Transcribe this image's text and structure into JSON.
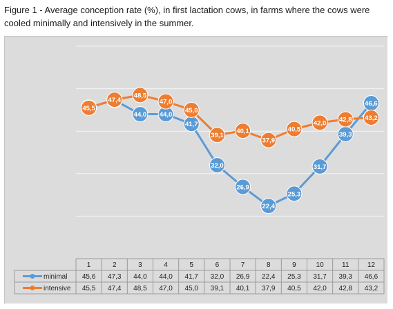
{
  "figure": {
    "caption_line1": "Figure 1 - Average conception rate (%), in first lactation cows, in farms where the cows were",
    "caption_line2": "cooled minimally and intensively in the summer."
  },
  "chart_data": {
    "type": "line",
    "title": "Figure 1 - Average conception rate (%), in first lactation cows, in farms where the cows were cooled minimally and intensively in the summer.",
    "xlabel": "",
    "ylabel": "",
    "categories": [
      "1",
      "2",
      "3",
      "4",
      "5",
      "6",
      "7",
      "8",
      "9",
      "10",
      "11",
      "12"
    ],
    "series": [
      {
        "name": "minimal",
        "color": "#5b9bd5",
        "values": [
          45.6,
          47.3,
          44.0,
          44.0,
          41.7,
          32.0,
          26.9,
          22.4,
          25.3,
          31.7,
          39.3,
          46.6
        ],
        "labels": [
          "45,6",
          "47,3",
          "44,0",
          "44,0",
          "41,7",
          "32,0",
          "26,9",
          "22,4",
          "25,3",
          "31,7",
          "39,3",
          "46,6"
        ]
      },
      {
        "name": "intensive",
        "color": "#ed7d31",
        "values": [
          45.5,
          47.4,
          48.5,
          47.0,
          45.0,
          39.1,
          40.1,
          37.9,
          40.5,
          42.0,
          42.8,
          43.2
        ],
        "labels": [
          "45,5",
          "47,4",
          "48,5",
          "47,0",
          "45,0",
          "39,1",
          "40,1",
          "37,9",
          "40,5",
          "42,0",
          "42,8",
          "43,2"
        ]
      }
    ],
    "ylim": [
      10,
      60
    ],
    "grid": true,
    "data_table": true,
    "legend": "data-table"
  }
}
